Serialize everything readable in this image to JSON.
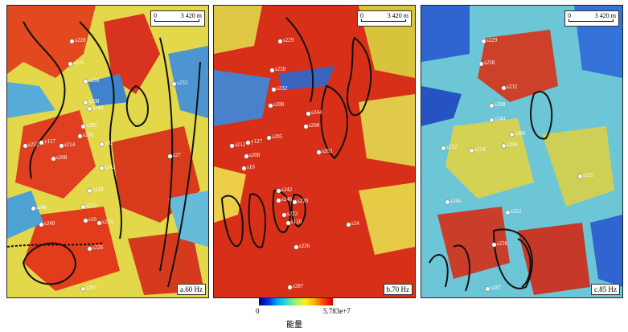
{
  "panels": [
    {
      "id": "a",
      "label": "a.60 Hz",
      "scale": {
        "start": "0",
        "end": "3 420 m"
      },
      "wells": [
        "s228",
        "s226",
        "s230",
        "s208",
        "s244",
        "s205",
        "s203",
        "y02",
        "s212",
        "y127",
        "s214",
        "s208",
        "s242",
        "s120",
        "s222",
        "s246",
        "s10",
        "s224",
        "s226",
        "s287",
        "s27",
        "s233",
        "s240"
      ]
    },
    {
      "id": "b",
      "label": "b.70 Hz",
      "scale": {
        "start": "0",
        "end": "3 420 m"
      },
      "wells": [
        "s229",
        "s228",
        "s232",
        "s208",
        "s244",
        "s200",
        "s205",
        "s203",
        "s212",
        "y127",
        "s208",
        "s10",
        "s242",
        "s246",
        "s220",
        "s222",
        "s120",
        "s226",
        "s287",
        "s24"
      ]
    },
    {
      "id": "c",
      "label": "c.85 Hz",
      "scale": {
        "start": "0",
        "end": "3 420 m"
      },
      "wells": [
        "s229",
        "s228",
        "s232",
        "s208",
        "s244",
        "s206",
        "s212",
        "s214",
        "s204",
        "s246",
        "s222",
        "s226",
        "s287",
        "s235"
      ]
    }
  ],
  "legend": {
    "min": "0",
    "max": "5.783e+7",
    "title": "能量"
  },
  "colors": {
    "low": "#00008a",
    "mid_low": "#00a8ff",
    "mid": "#f8f020",
    "high": "#d00000"
  }
}
